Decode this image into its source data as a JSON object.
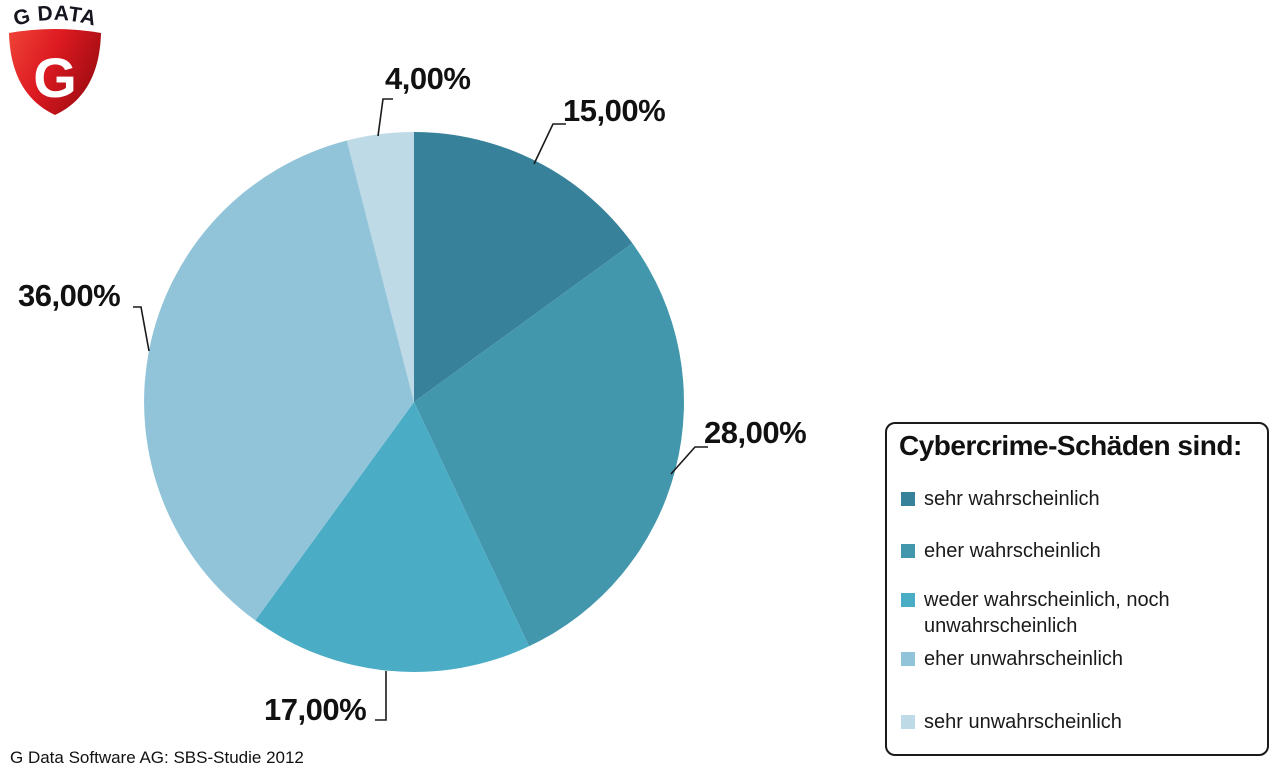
{
  "chart_data": {
    "type": "pie",
    "title": "Cybercrime-Schäden sind:",
    "direction": "clockwise",
    "start_angle_deg": 0,
    "legend_position": "right",
    "slices": [
      {
        "label": "sehr wahrscheinlich",
        "value": 15,
        "display": "15,00%",
        "color": "#37829A"
      },
      {
        "label": "eher wahrscheinlich",
        "value": 28,
        "display": "28,00%",
        "color": "#4397AD"
      },
      {
        "label": "weder wahrscheinlich, noch unwahrscheinlich",
        "value": 17,
        "display": "17,00%",
        "color": "#4BACC6"
      },
      {
        "label": "eher unwahrscheinlich",
        "value": 36,
        "display": "36,00%",
        "color": "#92C4D9"
      },
      {
        "label": "sehr unwahrscheinlich",
        "value": 4,
        "display": "4,00%",
        "color": "#BDDAE6"
      }
    ]
  },
  "legend": {
    "title": "Cybercrime-Schäden sind:"
  },
  "source_note": "G Data Software AG: SBS-Studie 2012",
  "logo": {
    "brand": "G DATA",
    "monogram": "G",
    "shield_red": "#D1121B"
  }
}
